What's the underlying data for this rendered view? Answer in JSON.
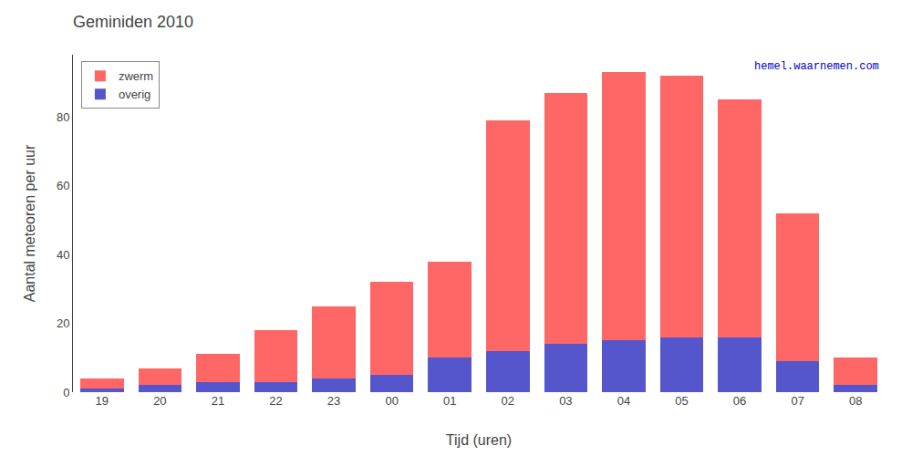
{
  "chart_data": {
    "type": "bar",
    "stacked": true,
    "title": "Geminiden 2010",
    "x_label": "Tijd (uren)",
    "y_label": "Aantal meteoren per uur",
    "categories": [
      "19",
      "20",
      "21",
      "22",
      "23",
      "00",
      "01",
      "02",
      "03",
      "04",
      "05",
      "06",
      "07",
      "08"
    ],
    "series": [
      {
        "name": "overig",
        "color": "#5555CC",
        "values": [
          1,
          2,
          3,
          3,
          4,
          5,
          10,
          12,
          14,
          15,
          16,
          16,
          9,
          2
        ]
      },
      {
        "name": "zwerm",
        "color": "#FF6666",
        "values": [
          3,
          5,
          8,
          15,
          21,
          27,
          28,
          67,
          73,
          78,
          76,
          69,
          43,
          8
        ]
      }
    ],
    "ylim": [
      0,
      98
    ],
    "yticks": [
      0,
      20,
      40,
      60,
      80
    ],
    "grid": false,
    "legend": "upper left",
    "annotations": [
      "hemel.waarnemen.com"
    ]
  }
}
